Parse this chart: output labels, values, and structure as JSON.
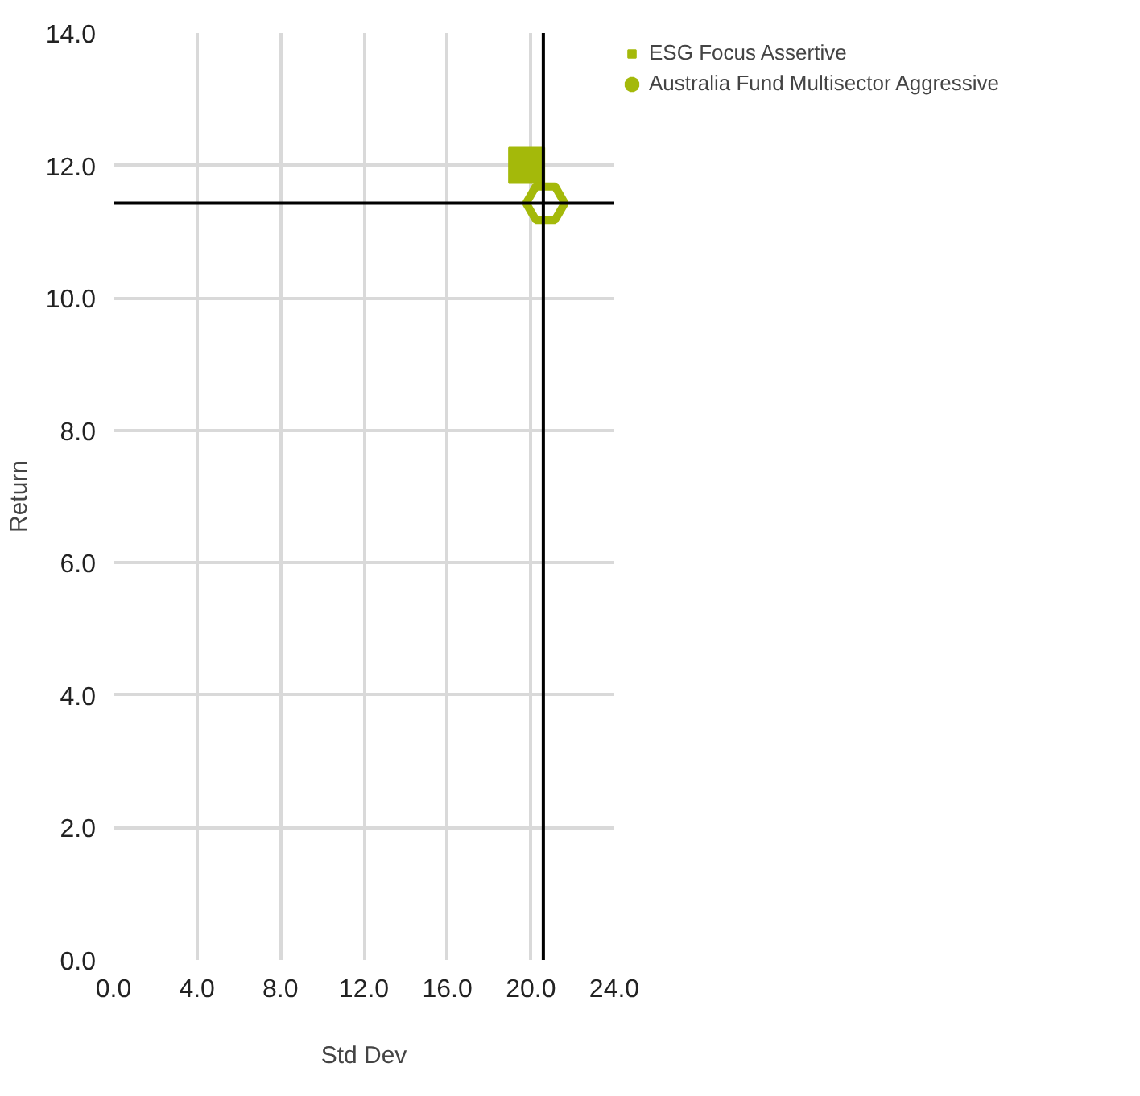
{
  "chart_data": {
    "type": "scatter",
    "xlabel": "Std Dev",
    "ylabel": "Return",
    "xlim": [
      0,
      24
    ],
    "ylim": [
      0,
      14
    ],
    "xticks": [
      {
        "value": 0,
        "label": "0.0"
      },
      {
        "value": 4,
        "label": "4.0"
      },
      {
        "value": 8,
        "label": "8.0"
      },
      {
        "value": 12,
        "label": "12.0"
      },
      {
        "value": 16,
        "label": "16.0"
      },
      {
        "value": 20,
        "label": "20.0"
      },
      {
        "value": 24,
        "label": "24.0"
      }
    ],
    "yticks": [
      {
        "value": 0,
        "label": "0.0"
      },
      {
        "value": 2,
        "label": "2.0"
      },
      {
        "value": 4,
        "label": "4.0"
      },
      {
        "value": 6,
        "label": "6.0"
      },
      {
        "value": 8,
        "label": "8.0"
      },
      {
        "value": 10,
        "label": "10.0"
      },
      {
        "value": 12,
        "label": "12.0"
      },
      {
        "value": 14,
        "label": "14.0"
      }
    ],
    "grid": true,
    "legend": "top right",
    "series": [
      {
        "name": "ESG Focus Assertive",
        "color": "#a4b90a",
        "marker": "square",
        "x": [
          19.8
        ],
        "values": [
          12.0
        ]
      },
      {
        "name": "Australia Fund Multisector Aggressive",
        "color": "#a4b90a",
        "x": [
          20.7
        ],
        "values": [
          11.43
        ]
      }
    ],
    "ref_lines": [
      {
        "axis": "x",
        "value": 20.6,
        "color": "#000000"
      },
      {
        "axis": "y",
        "value": 11.43,
        "color": "#000000"
      }
    ]
  }
}
